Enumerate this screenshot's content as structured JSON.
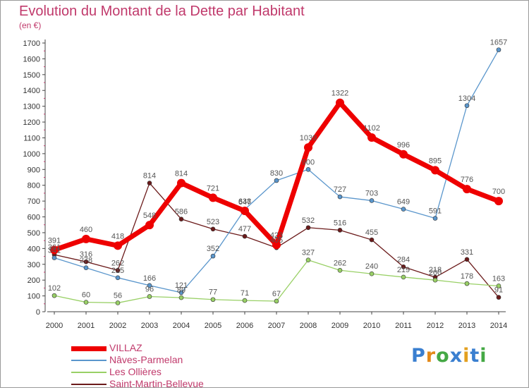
{
  "title": "Evolution du Montant de la Dette par Habitant",
  "unit_label": "(en €)",
  "logo_text": "Proxiti",
  "logo_colors": [
    "#3a7fd0",
    "#e38a1a",
    "#44a844",
    "#3a7fd0",
    "#e3a020",
    "#3a7fd0",
    "#44a844"
  ],
  "chart_data": {
    "type": "line",
    "title": "Evolution du Montant de la Dette par Habitant",
    "ylabel": "(en €)",
    "xlabel": "",
    "x": [
      "2000",
      "2001",
      "2002",
      "2003",
      "2004",
      "2005",
      "2006",
      "2007",
      "2008",
      "2009",
      "2010",
      "2011",
      "2012",
      "2013",
      "2014"
    ],
    "ylim": [
      0,
      1700
    ],
    "yticks": [
      0,
      100,
      200,
      300,
      400,
      500,
      600,
      700,
      800,
      900,
      1000,
      1100,
      1200,
      1300,
      1400,
      1500,
      1600,
      1700
    ],
    "grid": false,
    "legend": "bottom-left",
    "series": [
      {
        "name": "VILLAZ",
        "color": "#ee0000",
        "values": [
          391,
          460,
          418,
          548,
          814,
          721,
          638,
          423,
          1039,
          1322,
          1102,
          996,
          895,
          776,
          700
        ]
      },
      {
        "name": "Nâves-Parmelan",
        "color": "#5a96cc",
        "values": [
          341,
          278,
          215,
          166,
          121,
          352,
          647,
          830,
          900,
          727,
          703,
          649,
          591,
          1304,
          1657
        ]
      },
      {
        "name": "Les Ollières",
        "color": "#99d066",
        "values": [
          102,
          60,
          56,
          96,
          89,
          77,
          71,
          67,
          327,
          262,
          240,
          219,
          200,
          178,
          163
        ]
      },
      {
        "name": "Saint-Martin-Bellevue",
        "color": "#6b1a1a",
        "values": [
          361,
          316,
          262,
          814,
          586,
          523,
          477,
          405,
          532,
          516,
          455,
          284,
          218,
          331,
          91
        ]
      }
    ]
  }
}
